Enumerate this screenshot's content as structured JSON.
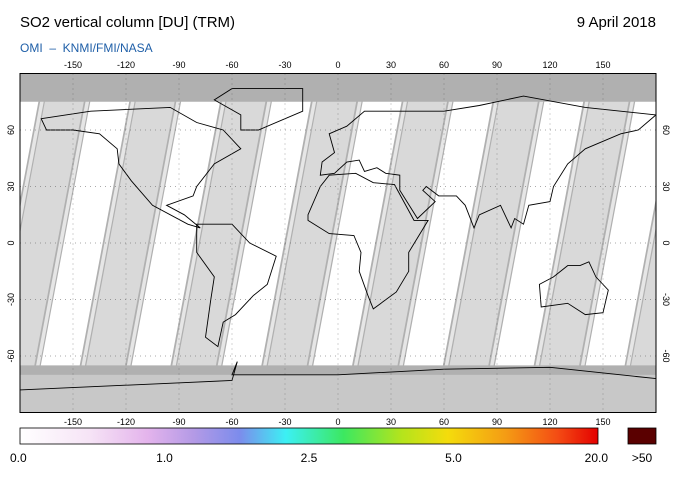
{
  "header": {
    "title": "SO2 vertical column [DU] (TRM)",
    "date": "9 April 2018",
    "subtitle": "OMI  –  KNMI/FMI/NASA"
  },
  "map": {
    "lon_ticks": [
      -150,
      -120,
      -90,
      -60,
      -30,
      0,
      30,
      60,
      90,
      120,
      150
    ],
    "lat_ticks": [
      60,
      30,
      0,
      -30,
      -60
    ]
  },
  "colorbar": {
    "labels": [
      "0.0",
      "1.0",
      "2.5",
      "5.0",
      "20.0"
    ],
    "overflow_label": ">50"
  }
}
